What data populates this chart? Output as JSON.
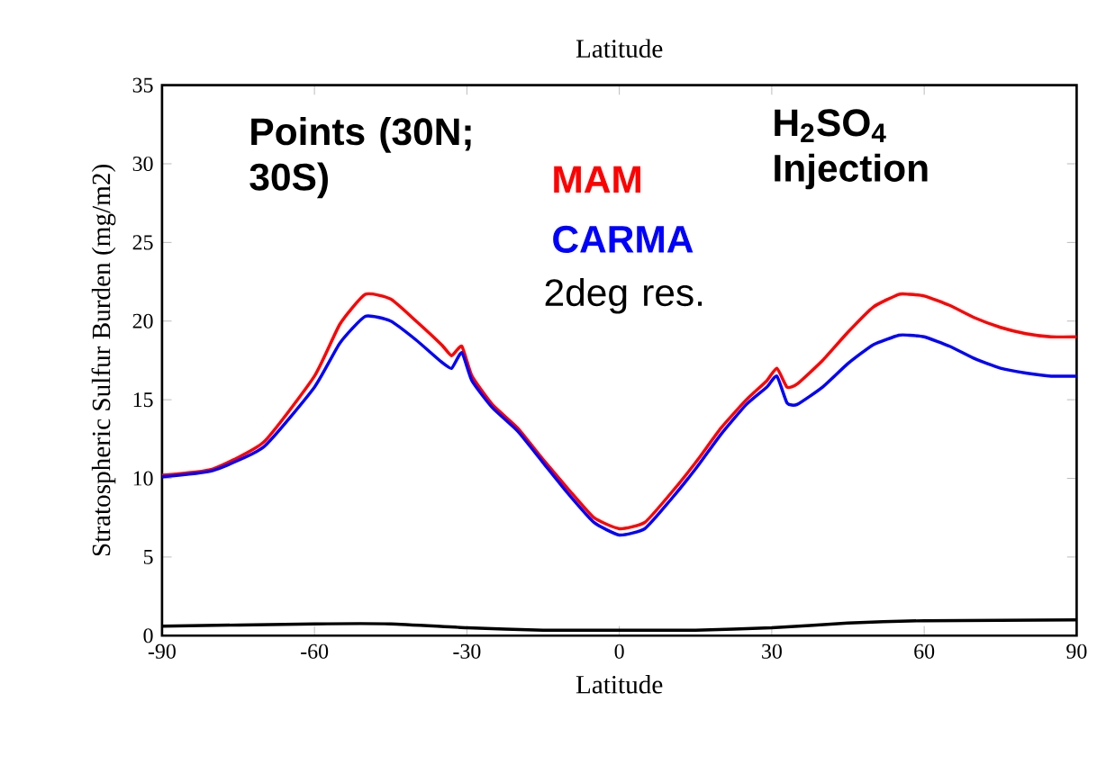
{
  "chart_data": {
    "type": "line",
    "title": "Latitude",
    "xlabel": "Latitude",
    "ylabel": "Stratospheric Sulfur Burden (mg/m2)",
    "x": [
      -90,
      -80,
      -70,
      -60,
      -55,
      -50,
      -45,
      -40,
      -35,
      -33,
      -31,
      -29,
      -25,
      -20,
      -15,
      -10,
      -5,
      0,
      5,
      10,
      15,
      20,
      25,
      29,
      31,
      33,
      35,
      40,
      45,
      50,
      55,
      57,
      60,
      65,
      70,
      75,
      80,
      85,
      90
    ],
    "xlim": [
      -90,
      90
    ],
    "ylim": [
      0,
      35
    ],
    "xticks": [
      -90,
      -60,
      -30,
      0,
      30,
      60,
      90
    ],
    "yticks": [
      0,
      5,
      10,
      15,
      20,
      25,
      30,
      35
    ],
    "series": [
      {
        "name": "MAM",
        "color": "#ff0000",
        "values": [
          10.2,
          10.6,
          12.3,
          16.5,
          19.8,
          21.7,
          21.4,
          20.0,
          18.5,
          17.8,
          18.4,
          16.5,
          14.7,
          13.2,
          11.2,
          9.3,
          7.5,
          6.8,
          7.2,
          9.0,
          11.0,
          13.2,
          15.0,
          16.2,
          17.0,
          15.8,
          16.0,
          17.5,
          19.3,
          20.9,
          21.7,
          21.7,
          21.6,
          21.0,
          20.2,
          19.6,
          19.2,
          19.0,
          19.0
        ]
      },
      {
        "name": "CARMA",
        "color": "#0000ff",
        "values": [
          10.1,
          10.5,
          12.0,
          15.8,
          18.6,
          20.3,
          20.0,
          18.8,
          17.4,
          17.0,
          18.0,
          16.2,
          14.5,
          13.0,
          11.0,
          9.0,
          7.2,
          6.4,
          6.8,
          8.6,
          10.6,
          12.8,
          14.7,
          15.8,
          16.5,
          14.8,
          14.7,
          15.8,
          17.3,
          18.5,
          19.1,
          19.1,
          19.0,
          18.4,
          17.6,
          17.0,
          16.7,
          16.5,
          16.5
        ]
      },
      {
        "color": "#000000",
        "x": [
          -90,
          -60,
          -45,
          -30,
          -15,
          0,
          15,
          30,
          45,
          60,
          90
        ],
        "values": [
          0.6,
          0.75,
          0.75,
          0.5,
          0.35,
          0.35,
          0.35,
          0.5,
          0.8,
          0.95,
          1.0
        ]
      }
    ],
    "annotations": [
      "Points (30N; 30S)",
      "2deg res.",
      "H$_{2}$SO$_{4}$ Injection"
    ]
  }
}
